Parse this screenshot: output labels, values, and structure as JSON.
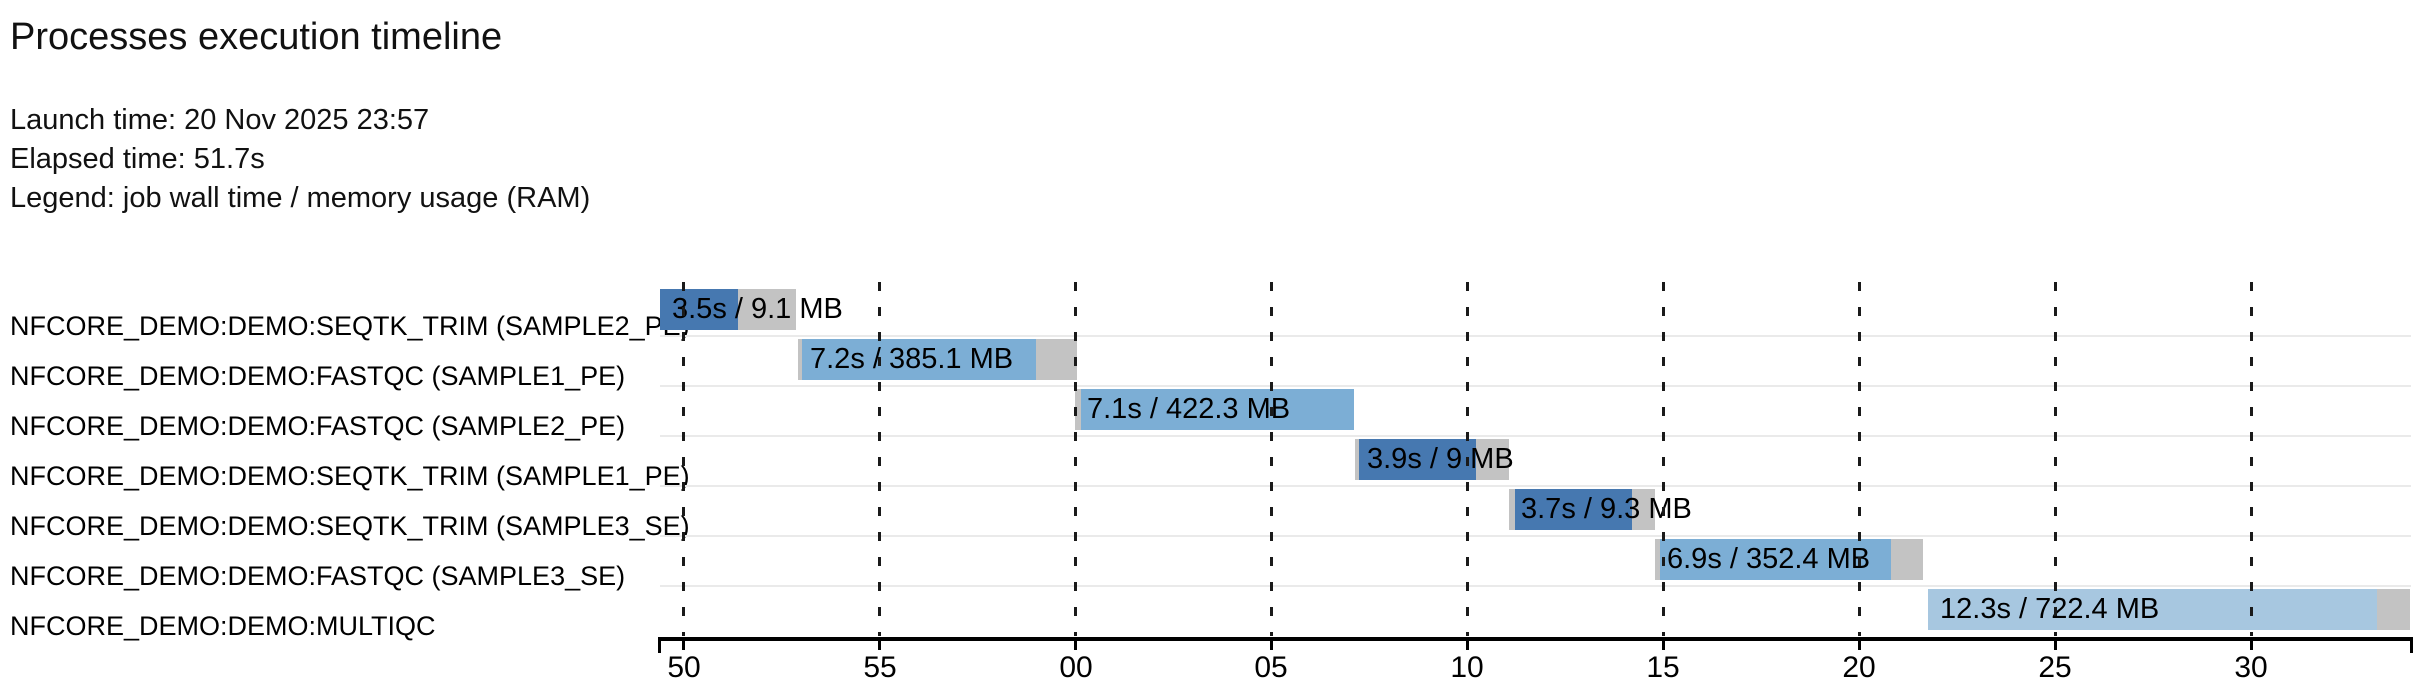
{
  "header": {
    "title": "Processes execution timeline",
    "launch_line": "Launch time: 20 Nov 2025 23:57",
    "elapsed_line": "Elapsed time: 51.7s",
    "legend_line": "Legend: job wall time / memory usage (RAM)"
  },
  "chart_data": {
    "type": "bar",
    "variant": "gantt_timeline",
    "title": "Processes execution timeline",
    "launch_time": "20 Nov 2025 23:57",
    "elapsed_time": "51.7s",
    "legend": "job wall time / memory usage (RAM)",
    "x_axis": {
      "unit": "seconds (clock, minute wraps at 00)",
      "domain": [
        49.4,
        94.07
      ],
      "grid": "dashed-vertical",
      "ticks": [
        {
          "value": 50,
          "label": "50"
        },
        {
          "value": 55,
          "label": "55"
        },
        {
          "value": 60,
          "label": "00"
        },
        {
          "value": 65,
          "label": "05"
        },
        {
          "value": 70,
          "label": "10"
        },
        {
          "value": 75,
          "label": "15"
        },
        {
          "value": 80,
          "label": "20"
        },
        {
          "value": 85,
          "label": "25"
        },
        {
          "value": 90,
          "label": "30"
        }
      ]
    },
    "colors": {
      "seqtk_trim": "#4678b0",
      "fastqc": "#7caed5",
      "multiqc": "#a7c7e0",
      "trail_gray": "#c3c3c3"
    },
    "rows": [
      {
        "process": "NFCORE_DEMO:DEMO:SEQTK_TRIM (SAMPLE2_PE)",
        "bar_label": "3.5s / 9.1 MB",
        "start": 49.4,
        "run_start": 49.4,
        "run_end": 51.4,
        "end": 52.88,
        "color_key": "seqtk_trim"
      },
      {
        "process": "NFCORE_DEMO:DEMO:FASTQC (SAMPLE1_PE)",
        "bar_label": "7.2s / 385.1 MB",
        "start": 52.91,
        "run_start": 53.02,
        "run_end": 59.0,
        "end": 60.02,
        "color_key": "fastqc"
      },
      {
        "process": "NFCORE_DEMO:DEMO:FASTQC (SAMPLE2_PE)",
        "bar_label": "7.1s / 422.3 MB",
        "start": 59.99,
        "run_start": 60.15,
        "run_end": 67.12,
        "end": 67.12,
        "color_key": "fastqc"
      },
      {
        "process": "NFCORE_DEMO:DEMO:SEQTK_TRIM (SAMPLE1_PE)",
        "bar_label": "3.9s / 9 MB",
        "start": 67.14,
        "run_start": 67.24,
        "run_end": 70.22,
        "end": 71.06,
        "color_key": "seqtk_trim"
      },
      {
        "process": "NFCORE_DEMO:DEMO:SEQTK_TRIM (SAMPLE3_SE)",
        "bar_label": "3.7s / 9.3 MB",
        "start": 71.06,
        "run_start": 71.2,
        "run_end": 74.18,
        "end": 74.79,
        "color_key": "seqtk_trim"
      },
      {
        "process": "NFCORE_DEMO:DEMO:FASTQC (SAMPLE3_SE)",
        "bar_label": "6.9s / 352.4 MB",
        "start": 74.79,
        "run_start": 74.92,
        "run_end": 80.82,
        "end": 81.63,
        "color_key": "fastqc"
      },
      {
        "process": "NFCORE_DEMO:DEMO:MULTIQC",
        "bar_label": "12.3s / 722.4 MB",
        "start": 81.75,
        "run_start": 81.75,
        "run_end": 93.2,
        "end": 94.05,
        "color_key": "multiqc"
      }
    ]
  }
}
